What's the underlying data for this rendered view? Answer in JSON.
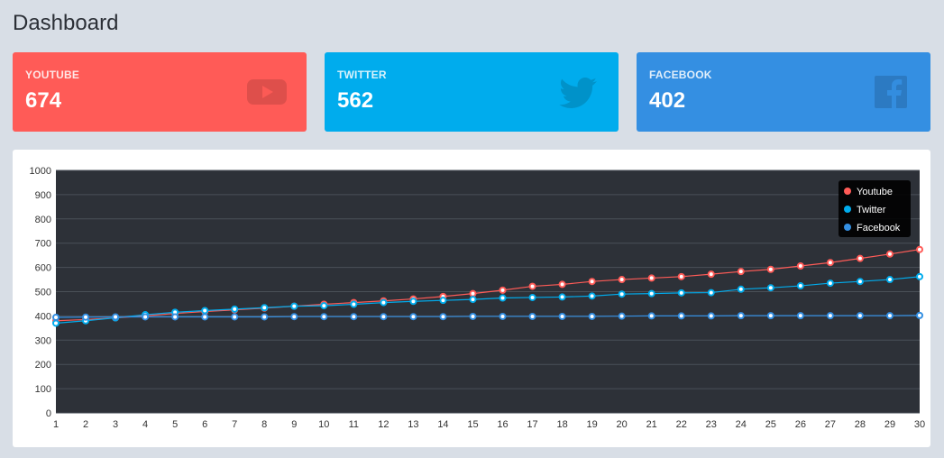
{
  "page": {
    "title": "Dashboard"
  },
  "cards": [
    {
      "label": "YOUTUBE",
      "value": "674",
      "color": "#ff5b57",
      "icon": "youtube-icon"
    },
    {
      "label": "TWITTER",
      "value": "562",
      "color": "#00aced",
      "icon": "twitter-icon"
    },
    {
      "label": "FACEBOOK",
      "value": "402",
      "color": "#348fe2",
      "icon": "facebook-icon"
    }
  ],
  "chart_data": {
    "type": "line",
    "title": "",
    "xlabel": "",
    "ylabel": "",
    "x": [
      1,
      2,
      3,
      4,
      5,
      6,
      7,
      8,
      9,
      10,
      11,
      12,
      13,
      14,
      15,
      16,
      17,
      18,
      19,
      20,
      21,
      22,
      23,
      24,
      25,
      26,
      27,
      28,
      29,
      30
    ],
    "ylim": [
      0,
      1000
    ],
    "yticks": [
      0,
      100,
      200,
      300,
      400,
      500,
      600,
      700,
      800,
      900,
      1000
    ],
    "grid": true,
    "background": "#2d3138",
    "legend_position": "top-right",
    "series": [
      {
        "name": "Youtube",
        "color": "#ff5b57",
        "values": [
          380,
          385,
          392,
          400,
          410,
          418,
          425,
          432,
          440,
          448,
          455,
          462,
          470,
          480,
          492,
          506,
          522,
          530,
          542,
          550,
          556,
          562,
          572,
          583,
          592,
          606,
          620,
          637,
          655,
          674
        ]
      },
      {
        "name": "Twitter",
        "color": "#00aced",
        "values": [
          370,
          380,
          392,
          405,
          415,
          422,
          428,
          434,
          440,
          442,
          448,
          455,
          460,
          464,
          468,
          474,
          476,
          478,
          482,
          490,
          492,
          495,
          496,
          510,
          516,
          524,
          535,
          542,
          550,
          562
        ]
      },
      {
        "name": "Facebook",
        "color": "#348fe2",
        "values": [
          394,
          395,
          396,
          396,
          396,
          396,
          396,
          396,
          397,
          397,
          397,
          397,
          397,
          397,
          398,
          398,
          398,
          398,
          398,
          399,
          400,
          400,
          400,
          401,
          401,
          401,
          401,
          401,
          401,
          402
        ]
      }
    ]
  }
}
